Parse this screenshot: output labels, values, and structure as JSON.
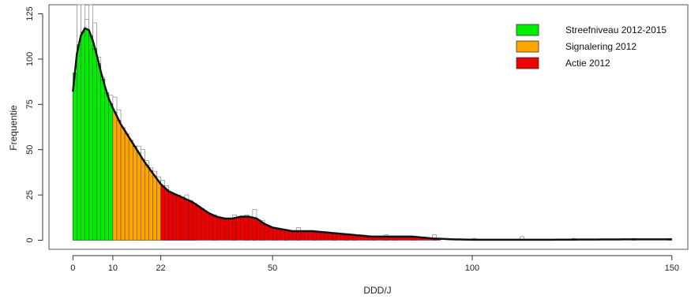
{
  "chart_data": {
    "type": "bar",
    "title": "",
    "xlabel": "DDD/J",
    "ylabel": "Frequentie",
    "xlim": [
      -6,
      154
    ],
    "ylim": [
      -5,
      130
    ],
    "xticks": [
      0,
      10,
      22,
      50,
      100,
      150
    ],
    "xtick_labels": [
      "0",
      "10",
      "22",
      "50",
      "100",
      "150"
    ],
    "yticks": [
      0,
      25,
      50,
      75,
      100,
      125
    ],
    "ytick_labels": [
      "0",
      "25",
      "50",
      "75",
      "100",
      "125"
    ],
    "grid": false,
    "legend_position": "top-right",
    "series": [
      {
        "name": "Streefniveau 2012-2015",
        "color": "#00ee00",
        "range": [
          0,
          10
        ]
      },
      {
        "name": "Signalering 2012",
        "color": "#ffa500",
        "range": [
          10,
          22
        ]
      },
      {
        "name": "Actie 2012",
        "color": "#ee0000",
        "range": [
          22,
          92
        ]
      }
    ],
    "histogram": {
      "bin_width": 1,
      "bin_starts": [
        0,
        1,
        2,
        3,
        4,
        5,
        6,
        7,
        8,
        9,
        10,
        11,
        12,
        13,
        14,
        15,
        16,
        17,
        18,
        19,
        20,
        21,
        22,
        23,
        24,
        25,
        26,
        27,
        28,
        29,
        30,
        35,
        40,
        43,
        45,
        47,
        50,
        53,
        56,
        60,
        65,
        68,
        70,
        75,
        78,
        80,
        85,
        90,
        100,
        112,
        125,
        140,
        149
      ],
      "counts": [
        85,
        136,
        148,
        122,
        132,
        120,
        101,
        90,
        80,
        80,
        79,
        72,
        62,
        58,
        55,
        52,
        52,
        50,
        44,
        40,
        38,
        35,
        33,
        30,
        25,
        25,
        25,
        24,
        25,
        22,
        20,
        14,
        14,
        14,
        17,
        11,
        7,
        5,
        7,
        4,
        3,
        3,
        3,
        2,
        3,
        2,
        2,
        3,
        1,
        2,
        1,
        1,
        1
      ]
    },
    "density_curve": {
      "x": [
        0,
        1,
        2,
        3,
        4,
        5,
        6,
        7,
        8,
        9,
        10,
        12,
        14,
        16,
        18,
        20,
        22,
        24,
        26,
        28,
        30,
        32,
        34,
        36,
        38,
        40,
        42,
        44,
        46,
        48,
        50,
        55,
        60,
        65,
        70,
        75,
        80,
        85,
        90,
        95,
        100,
        110,
        120,
        130,
        140,
        150
      ],
      "y": [
        82,
        103,
        113,
        117,
        116,
        110,
        102,
        93,
        85,
        78,
        73,
        64,
        57,
        50,
        43,
        37,
        31,
        27,
        25,
        23,
        21,
        18,
        15,
        13,
        12,
        12,
        13,
        13,
        12,
        9,
        7,
        5,
        5,
        4,
        3,
        2,
        2,
        2,
        1,
        0.5,
        0.3,
        0.3,
        0.3,
        0.4,
        0.5,
        0.5
      ]
    }
  }
}
